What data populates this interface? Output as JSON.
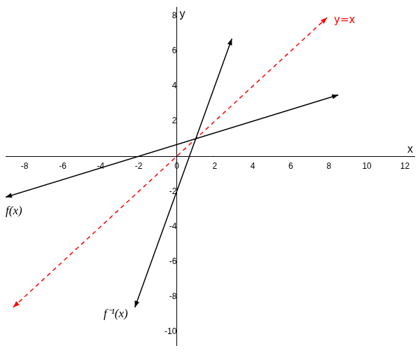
{
  "chart_data": {
    "type": "line",
    "x_label": "x",
    "y_label": "y",
    "xlim": [
      -9,
      12.5
    ],
    "xticks": [
      -8,
      -6,
      -4,
      -2,
      0,
      2,
      4,
      6,
      8,
      10,
      12
    ],
    "ylim": [
      -10.8,
      8.5
    ],
    "yticks": [
      -10,
      -8,
      -6,
      -4,
      -2,
      2,
      4,
      6,
      8
    ],
    "grid": false,
    "series": [
      {
        "name": "f(x)",
        "color": "#000000",
        "line_style": "solid",
        "marker": "arrow",
        "x": [
          -9,
          8.5
        ],
        "values": [
          -2.33,
          3.5
        ]
      },
      {
        "name": "f⁻¹(x)",
        "color": "#000000",
        "line_style": "solid",
        "marker": "arrow",
        "x": [
          -2.2,
          2.9
        ],
        "values": [
          -8.6,
          6.7
        ]
      },
      {
        "name": "y=x",
        "color": "#ff0000",
        "line_style": "dashed",
        "marker": "arrow",
        "x": [
          -8.6,
          7.9
        ],
        "values": [
          -8.6,
          7.9
        ]
      }
    ]
  }
}
